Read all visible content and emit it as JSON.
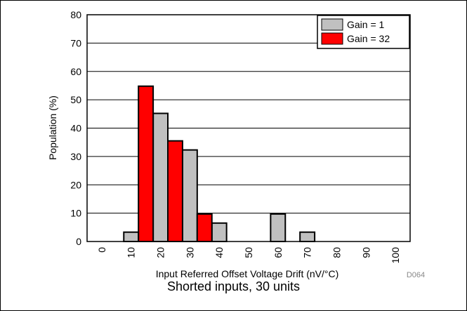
{
  "chart_data": {
    "type": "bar",
    "categories": [
      "0",
      "10",
      "20",
      "30",
      "40",
      "50",
      "60",
      "70",
      "80",
      "90",
      "100"
    ],
    "bin_width": 5,
    "series": [
      {
        "name": "Gain = 1",
        "color": "#c0c0c0",
        "x": [
          10,
          20,
          30,
          40,
          60,
          70
        ],
        "values": [
          3.3,
          45.2,
          32.3,
          6.5,
          9.7,
          3.3
        ]
      },
      {
        "name": "Gain = 32",
        "color": "#ff0000",
        "x": [
          15,
          25,
          35
        ],
        "values": [
          54.8,
          35.5,
          9.7
        ]
      }
    ],
    "title": "",
    "xlabel": "Input Referred Offset Voltage Drift (nV/°C)",
    "ylabel": "Population (%)",
    "ylim": [
      0,
      80
    ],
    "yticks": [
      "0",
      "10",
      "20",
      "30",
      "40",
      "50",
      "60",
      "70",
      "80"
    ],
    "grid": "horizontal",
    "legend_position": "top-right",
    "figure_id": "D064"
  },
  "caption": "Shorted inputs, 30 units"
}
